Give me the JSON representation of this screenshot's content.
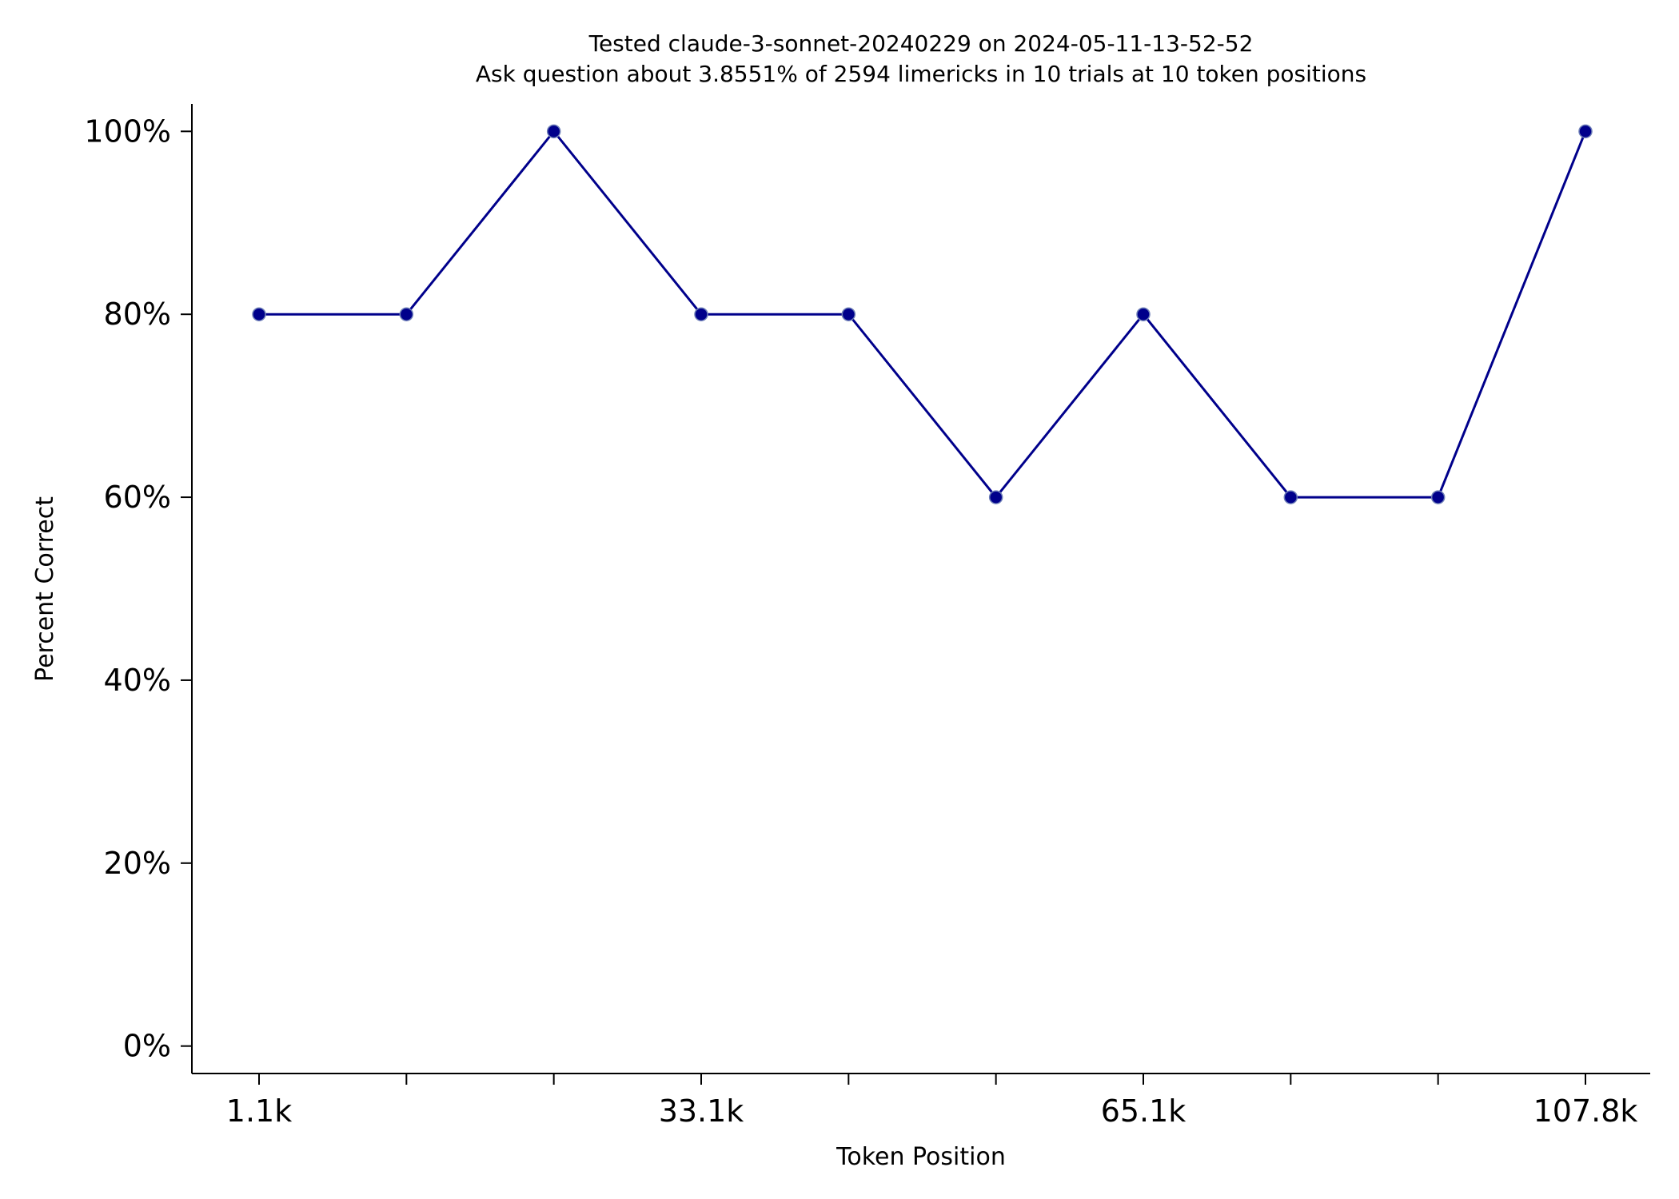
{
  "chart_data": {
    "type": "line",
    "title": "Tested claude-3-sonnet-20240229 on 2024-05-11-13-52-52",
    "subtitle": "Ask question about 3.8551% of 2594 limericks in 10 trials at 10 token positions",
    "xlabel": "Token Position",
    "ylabel": "Percent Correct",
    "x_tick_labels": [
      "1.1k",
      "",
      "",
      "33.1k",
      "",
      "",
      "65.1k",
      "",
      "",
      "107.8k"
    ],
    "y_ticks": [
      0,
      20,
      40,
      60,
      80,
      100
    ],
    "y_tick_labels": [
      "0%",
      "20%",
      "40%",
      "60%",
      "80%",
      "100%"
    ],
    "ylim": [
      -3,
      103
    ],
    "grid": false,
    "series": [
      {
        "values": [
          80,
          80,
          100,
          80,
          80,
          60,
          80,
          60,
          60,
          100
        ],
        "color": "#00008b"
      }
    ]
  }
}
